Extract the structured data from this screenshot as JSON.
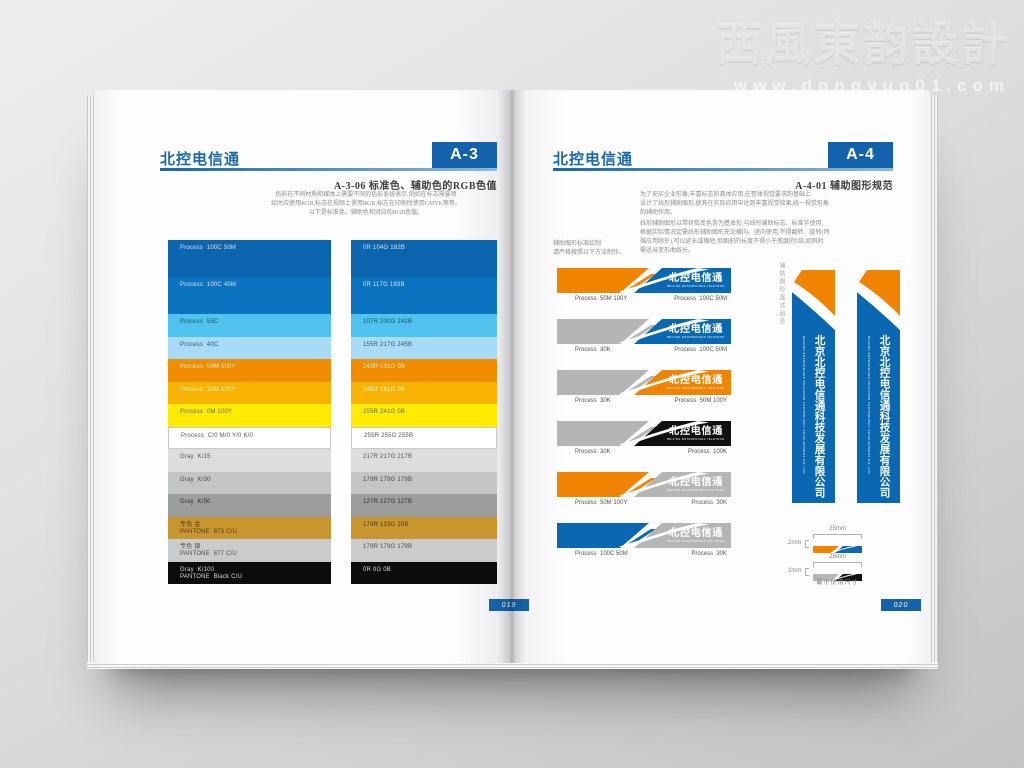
{
  "watermark": {
    "brand": "西風東韵設計",
    "url": "www.dongyun01.com"
  },
  "logo": {
    "cn": "北控电信通",
    "en": "BEIJING ENTERPRISES TELETRON"
  },
  "palette": {
    "blue": "#0a68b2",
    "orange": "#f08300",
    "gray": "#b4b5b5",
    "black": "#101010",
    "header_blue": "#1a67ad",
    "box_blue": "#1562ac"
  },
  "left_page": {
    "brand": "北控电信通",
    "code": "A-3",
    "title": "A-3-06  标准色、辅助色的RGB色值",
    "intro_lines": [
      "色彩在不同材质和媒体上需要不同的色彩系统表示,例如在标志需要喷",
      "绘时应使用RGB,标志在视频上使用RGB,标志在印刷时使用CMYK等等。",
      "以下是标准色、辅助色相对应的RGB色值。"
    ],
    "page_number": "019",
    "swatch_rows": [
      {
        "tall": true,
        "bg": "#0a64ae",
        "fg": "#d6e7f5",
        "cmyk": [
          "Process  100C 50M"
        ],
        "rgb": [
          "0R 104G 182B"
        ]
      },
      {
        "tall": true,
        "bg": "#0c73c0",
        "fg": "#d6e7f5",
        "cmyk": [
          "Process  100C 40M"
        ],
        "rgb": [
          "0R 117G 193B"
        ]
      },
      {
        "tall": false,
        "bg": "#4fc2ef",
        "fg": "#1d4a63",
        "cmyk": [
          "Process  55C"
        ],
        "rgb": [
          "107R 200G 242B"
        ]
      },
      {
        "tall": false,
        "bg": "#a8dbf6",
        "fg": "#2f566d",
        "cmyk": [
          "Process  40C"
        ],
        "rgb": [
          "155R 217G 245B"
        ]
      },
      {
        "tall": false,
        "bg": "#f18e00",
        "fg": "#fdeecd",
        "cmyk": [
          "Process  50M 100Y"
        ],
        "rgb": [
          "243R 131G 0B"
        ]
      },
      {
        "tall": false,
        "bg": "#f7b300",
        "fg": "#fff3cc",
        "cmyk": [
          "Process  30M 100Y"
        ],
        "rgb": [
          "248R 181G 0B"
        ]
      },
      {
        "tall": false,
        "bg": "#ffeb00",
        "fg": "#6f6200",
        "cmyk": [
          "Process  0M 100Y"
        ],
        "rgb": [
          "255R 241G 0B"
        ]
      },
      {
        "tall": false,
        "bg": "#ffffff",
        "fg": "#555555",
        "border": true,
        "cmyk": [
          "Process  C/0 M/0 Y/0 K/0"
        ],
        "rgb": [
          "255R 255G 255B"
        ]
      },
      {
        "tall": false,
        "bg": "#dddddd",
        "fg": "#555555",
        "cmyk": [
          "Gray  K/15"
        ],
        "rgb": [
          "217R 217G 217B"
        ]
      },
      {
        "tall": false,
        "bg": "#c3c4c4",
        "fg": "#444444",
        "cmyk": [
          "Gray  K/30"
        ],
        "rgb": [
          "179R 179G 179B"
        ]
      },
      {
        "tall": false,
        "bg": "#9c9d9d",
        "fg": "#2e2e2e",
        "cmyk": [
          "Gray  K/50"
        ],
        "rgb": [
          "127R 127G 127B"
        ]
      },
      {
        "tall": false,
        "bg": "#c8962e",
        "fg": "#4d3a0e",
        "cmyk": [
          "专色 金",
          "PANTONE  873 C/U"
        ],
        "rgb": [
          "179R 133G 29B"
        ]
      },
      {
        "tall": false,
        "bg": "#c9cbcc",
        "fg": "#4a4a4a",
        "cmyk": [
          "专色 银",
          "PANTONE  877 C/U"
        ],
        "rgb": [
          "179R 179G 179B"
        ]
      },
      {
        "tall": false,
        "bg": "#0c0c0c",
        "fg": "#d8d8d8",
        "cmyk": [
          "Gray  K/100",
          "PANTONE  Black C/U"
        ],
        "rgb": [
          "0R 0G 0B"
        ]
      }
    ]
  },
  "right_page": {
    "brand": "北控电信通",
    "code": "A-4",
    "title": "A-4-01  辅助图形规范",
    "para1_lines": [
      "为了充实企业形象,丰富标志的具体应用,在整体视觉要求的基础上",
      "设计了线形辅助图形,使其在实际应用中达到丰富视觉效果,统一视觉形象",
      "的辅助作用。"
    ],
    "para2_lines": [
      "线形辅助图形以带状弧变色条为基本形,与线形辅助标志、标准字使用,",
      "根据实际情况定需线形辅助图形无论横向、竖向使用,不得翻转、旋转(特",
      "殊应用除外),可以延长或缩短,但图形的长度不得小于宽度的5倍,如斜时",
      "需适当变形曲线长。"
    ],
    "caption_lines": [
      "辅助图形标准绘制",
      "请严格按照以下方法制作。"
    ],
    "page_number": "020",
    "banners": [
      {
        "left_color": "#f08300",
        "right_color": "#0a68b2",
        "left_label": "Process  50M 100Y",
        "right_label": "Process  100C 50M"
      },
      {
        "left_color": "#b4b5b5",
        "right_color": "#0a68b2",
        "left_label": "Process  30K",
        "right_label": "Process  100C 50M"
      },
      {
        "left_color": "#b4b5b5",
        "right_color": "#f08300",
        "left_label": "Process  30K",
        "right_label": "Process  50M 100Y"
      },
      {
        "left_color": "#b4b5b5",
        "right_color": "#101010",
        "left_label": "Process  30K",
        "right_label": "Process  100K"
      },
      {
        "left_color": "#f08300",
        "right_color": "#b4b5b5",
        "left_label": "Process  50M 100Y",
        "right_label": "Process  30K"
      },
      {
        "left_color": "#0a68b2",
        "right_color": "#b4b5b5",
        "left_label": "Process  100C 50M",
        "right_label": "Process  30K"
      }
    ],
    "vertical": {
      "caption": "辅助图形竖式组合",
      "company_cn": "北京北控电信通科技发展有限公司",
      "company_en": "BEIJING ENTERPRISES TELETRON TECHNOLOGY DEVELOPMENT CO.,LTD"
    },
    "min_size": {
      "width_label": "25mm",
      "height_label": "2mm",
      "caption": "最小使用尺寸",
      "strips": [
        {
          "left_color": "#f08300",
          "right_color": "#0a68b2"
        },
        {
          "left_color": "#b4b5b5",
          "right_color": "#101010"
        }
      ]
    }
  }
}
